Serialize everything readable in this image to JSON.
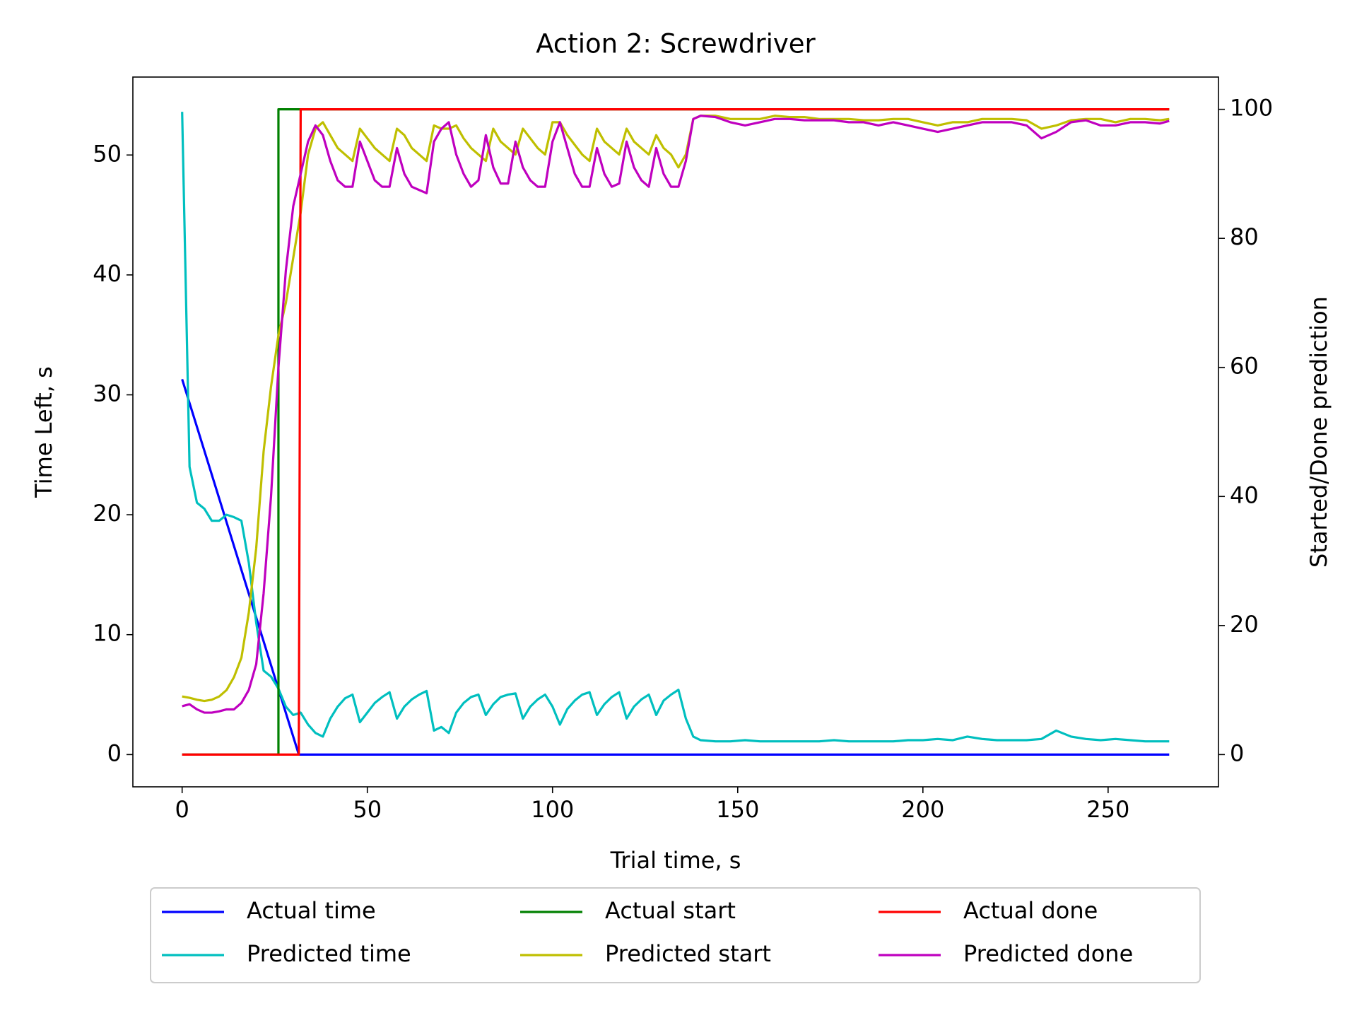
{
  "chart_data": {
    "type": "line",
    "title": "Action 2: Screwdriver",
    "x_label": "Trial time, s",
    "y_label": "Time Left, s",
    "y2_label": "Started/Done prediction",
    "xlim": [
      -13.3,
      279.8
    ],
    "xticks": [
      0,
      50,
      100,
      150,
      200,
      250
    ],
    "ylim": [
      -2.69,
      56.5
    ],
    "yticks": [
      0,
      10,
      20,
      30,
      40,
      50
    ],
    "y2lim": [
      -5,
      105
    ],
    "y2ticks": [
      0,
      20,
      40,
      60,
      80,
      100
    ],
    "grid": false,
    "legend": "bottom",
    "series": [
      {
        "name": "Actual time",
        "color": "#0000ff",
        "x": [
          0,
          31.5,
          266.5
        ],
        "values": [
          31.3,
          0,
          0
        ]
      },
      {
        "name": "Predicted time",
        "color": "#00bfbf",
        "x": [
          0,
          2,
          4,
          6,
          8,
          10,
          12,
          14,
          16,
          18,
          20,
          22,
          24,
          26,
          28,
          30,
          32,
          34,
          36,
          38,
          40,
          42,
          44,
          46,
          48,
          50,
          52,
          54,
          56,
          58,
          60,
          62,
          64,
          66,
          68,
          70,
          72,
          74,
          76,
          78,
          80,
          82,
          84,
          86,
          88,
          90,
          92,
          94,
          96,
          98,
          100,
          102,
          104,
          106,
          108,
          110,
          112,
          114,
          116,
          118,
          120,
          122,
          124,
          126,
          128,
          130,
          132,
          134,
          136,
          138,
          140,
          144,
          148,
          152,
          156,
          160,
          164,
          168,
          172,
          176,
          180,
          184,
          188,
          192,
          196,
          200,
          204,
          208,
          212,
          216,
          220,
          224,
          228,
          232,
          236,
          240,
          244,
          248,
          252,
          256,
          260,
          264,
          266.5
        ],
        "values": [
          53.6,
          24,
          21,
          20.5,
          19.5,
          19.5,
          20,
          19.8,
          19.5,
          16,
          11,
          7,
          6.5,
          5.5,
          4,
          3.3,
          3.5,
          2.5,
          1.8,
          1.5,
          3,
          4,
          4.7,
          5,
          2.7,
          3.5,
          4.3,
          4.8,
          5.2,
          3,
          4,
          4.6,
          5,
          5.3,
          2,
          2.3,
          1.8,
          3.5,
          4.3,
          4.8,
          5,
          3.3,
          4.2,
          4.8,
          5,
          5.1,
          3,
          4,
          4.6,
          5,
          4,
          2.5,
          3.8,
          4.5,
          5,
          5.2,
          3.3,
          4.2,
          4.8,
          5.2,
          3,
          4,
          4.6,
          5,
          3.3,
          4.5,
          5,
          5.4,
          3,
          1.5,
          1.2,
          1.1,
          1.1,
          1.2,
          1.1,
          1.1,
          1.1,
          1.1,
          1.1,
          1.2,
          1.1,
          1.1,
          1.1,
          1.1,
          1.2,
          1.2,
          1.3,
          1.2,
          1.5,
          1.3,
          1.2,
          1.2,
          1.2,
          1.3,
          2.0,
          1.5,
          1.3,
          1.2,
          1.3,
          1.2,
          1.1,
          1.1,
          1.1
        ]
      },
      {
        "name": "Actual start",
        "color": "#008000",
        "axis": "y2",
        "x": [
          0,
          26,
          26,
          266.5
        ],
        "values": [
          0,
          0,
          100,
          100
        ]
      },
      {
        "name": "Predicted start",
        "color": "#bfbf00",
        "axis": "y2",
        "x": [
          0,
          2,
          4,
          6,
          8,
          10,
          12,
          14,
          16,
          18,
          20,
          22,
          24,
          26,
          28,
          30,
          32,
          34,
          36,
          38,
          40,
          42,
          44,
          46,
          48,
          50,
          52,
          54,
          56,
          58,
          60,
          62,
          64,
          66,
          68,
          70,
          72,
          74,
          76,
          78,
          80,
          82,
          84,
          86,
          88,
          90,
          92,
          94,
          96,
          98,
          100,
          102,
          104,
          106,
          108,
          110,
          112,
          114,
          116,
          118,
          120,
          122,
          124,
          126,
          128,
          130,
          132,
          134,
          136,
          138,
          140,
          144,
          148,
          152,
          156,
          160,
          164,
          168,
          172,
          176,
          180,
          184,
          188,
          192,
          196,
          200,
          204,
          208,
          212,
          216,
          220,
          224,
          228,
          232,
          236,
          240,
          244,
          248,
          252,
          256,
          260,
          264,
          266.5
        ],
        "values": [
          9,
          8.8,
          8.5,
          8.3,
          8.5,
          9,
          10,
          12,
          15,
          22,
          32,
          47,
          57,
          65,
          70,
          77,
          84,
          93,
          97,
          98,
          96,
          94,
          93,
          92,
          97,
          95.5,
          94,
          93,
          92,
          97,
          96,
          94,
          93,
          92,
          97.5,
          97,
          97,
          97.5,
          95.5,
          94,
          93,
          92,
          97,
          95,
          94,
          93,
          97,
          95.5,
          94,
          93,
          98,
          98,
          96,
          94.5,
          93,
          92,
          97,
          95,
          94,
          93,
          97,
          95,
          94,
          93,
          96,
          94,
          93,
          91,
          93,
          98.5,
          99,
          99,
          98.5,
          98.5,
          98.5,
          99,
          98.8,
          98.8,
          98.5,
          98.5,
          98.5,
          98.3,
          98.3,
          98.5,
          98.5,
          98,
          97.5,
          98,
          98,
          98.5,
          98.5,
          98.5,
          98.3,
          97,
          97.5,
          98.3,
          98.5,
          98.5,
          98,
          98.5,
          98.5,
          98.3,
          98.5
        ]
      },
      {
        "name": "Actual done",
        "color": "#ff0000",
        "axis": "y2",
        "x": [
          0,
          31.5,
          32,
          266.5
        ],
        "values": [
          0,
          0,
          100,
          100
        ]
      },
      {
        "name": "Predicted done",
        "color": "#bf00bf",
        "axis": "y2",
        "x": [
          0,
          2,
          4,
          6,
          8,
          10,
          12,
          14,
          16,
          18,
          20,
          22,
          24,
          26,
          28,
          30,
          32,
          34,
          36,
          38,
          40,
          42,
          44,
          46,
          48,
          50,
          52,
          54,
          56,
          58,
          60,
          62,
          64,
          66,
          68,
          70,
          72,
          74,
          76,
          78,
          80,
          82,
          84,
          86,
          88,
          90,
          92,
          94,
          96,
          98,
          100,
          102,
          104,
          106,
          108,
          110,
          112,
          114,
          116,
          118,
          120,
          122,
          124,
          126,
          128,
          130,
          132,
          134,
          136,
          138,
          140,
          144,
          148,
          152,
          156,
          160,
          164,
          168,
          172,
          176,
          180,
          184,
          188,
          192,
          196,
          200,
          204,
          208,
          212,
          216,
          220,
          224,
          228,
          232,
          236,
          240,
          244,
          248,
          252,
          256,
          260,
          264,
          266.5
        ],
        "values": [
          7.5,
          7.8,
          7,
          6.5,
          6.5,
          6.7,
          7,
          7,
          8,
          10,
          14,
          25,
          40,
          60,
          75,
          85,
          90,
          95,
          97.5,
          96,
          92,
          89,
          88,
          88,
          95,
          92,
          89,
          88,
          88,
          94,
          90,
          88,
          87.5,
          87,
          95,
          97,
          98,
          93,
          90,
          88,
          89,
          96,
          91,
          88.5,
          88.5,
          95,
          91,
          89,
          88,
          88,
          95,
          98,
          94,
          90,
          88,
          88,
          94,
          90,
          88,
          88.5,
          95,
          91,
          89,
          88,
          94,
          90,
          88,
          88,
          92,
          98.5,
          99,
          98.8,
          98,
          97.5,
          98,
          98.5,
          98.5,
          98.3,
          98.3,
          98.3,
          98,
          98,
          97.5,
          98,
          97.5,
          97,
          96.5,
          97,
          97.5,
          98,
          98,
          98,
          97.5,
          95.5,
          96.5,
          98,
          98.3,
          97.5,
          97.5,
          98,
          98,
          97.8,
          98.2
        ]
      }
    ]
  }
}
